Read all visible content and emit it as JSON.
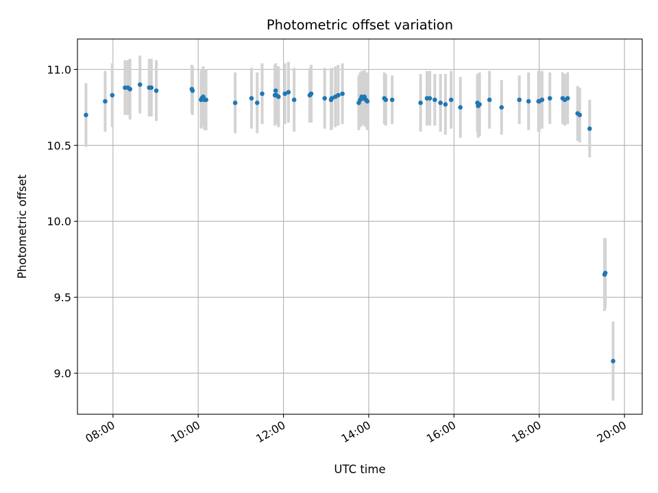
{
  "chart_data": {
    "type": "scatter",
    "title": "Photometric offset variation",
    "xlabel": "UTC time",
    "ylabel": "Photometric offset",
    "xlim": [
      "07:10",
      "20:25"
    ],
    "ylim": [
      8.73,
      11.2
    ],
    "xticks": [
      "08:00",
      "10:00",
      "12:00",
      "14:00",
      "16:00",
      "18:00",
      "20:00"
    ],
    "yticks": [
      "9.0",
      "9.5",
      "10.0",
      "10.5",
      "11.0"
    ],
    "grid": true,
    "colors": {
      "point": "#1f77b4",
      "errorbar": "#d3d3d3",
      "grid": "#b0b0b0",
      "axes": "#000000"
    },
    "series": [
      {
        "x": [
          "07:22",
          "07:49",
          "07:59",
          "08:17",
          "08:21",
          "08:24",
          "08:38",
          "08:51",
          "08:54",
          "09:01",
          "09:51",
          "09:52",
          "10:04",
          "10:05",
          "10:07",
          "10:09",
          "10:11",
          "10:52",
          "11:15",
          "11:23",
          "11:30",
          "11:48",
          "11:49",
          "11:50",
          "11:53",
          "12:02",
          "12:07",
          "12:15",
          "12:37",
          "12:39",
          "12:58",
          "13:07",
          "13:08",
          "13:13",
          "13:17",
          "13:23",
          "13:46",
          "13:48",
          "13:50",
          "13:52",
          "13:54",
          "13:56",
          "13:58",
          "14:22",
          "14:24",
          "14:33",
          "15:13",
          "15:22",
          "15:26",
          "15:33",
          "15:41",
          "15:48",
          "15:56",
          "16:09",
          "16:33",
          "16:34",
          "16:36",
          "16:50",
          "17:07",
          "17:32",
          "17:45",
          "17:59",
          "18:00",
          "18:04",
          "18:15",
          "18:33",
          "18:36",
          "18:40",
          "18:54",
          "18:57",
          "19:11",
          "19:32",
          "19:33",
          "19:44"
        ],
        "y": [
          10.7,
          10.79,
          10.83,
          10.88,
          10.88,
          10.87,
          10.9,
          10.88,
          10.88,
          10.86,
          10.87,
          10.86,
          10.8,
          10.81,
          10.82,
          10.8,
          10.8,
          10.78,
          10.81,
          10.78,
          10.84,
          10.83,
          10.86,
          10.83,
          10.82,
          10.84,
          10.85,
          10.8,
          10.83,
          10.84,
          10.81,
          10.8,
          10.81,
          10.82,
          10.83,
          10.84,
          10.78,
          10.8,
          10.82,
          10.81,
          10.82,
          10.8,
          10.79,
          10.81,
          10.8,
          10.8,
          10.78,
          10.81,
          10.81,
          10.8,
          10.78,
          10.77,
          10.8,
          10.75,
          10.78,
          10.76,
          10.77,
          10.8,
          10.75,
          10.8,
          10.79,
          10.79,
          10.79,
          10.8,
          10.81,
          10.81,
          10.8,
          10.81,
          10.71,
          10.7,
          10.61,
          9.65,
          9.66,
          9.08
        ],
        "yerr": [
          0.21,
          0.2,
          0.21,
          0.18,
          0.18,
          0.2,
          0.19,
          0.19,
          0.19,
          0.2,
          0.16,
          0.16,
          0.19,
          0.19,
          0.2,
          0.2,
          0.2,
          0.2,
          0.2,
          0.2,
          0.2,
          0.2,
          0.18,
          0.19,
          0.2,
          0.2,
          0.2,
          0.21,
          0.18,
          0.19,
          0.2,
          0.2,
          0.2,
          0.2,
          0.2,
          0.2,
          0.18,
          0.18,
          0.17,
          0.18,
          0.18,
          0.18,
          0.19,
          0.17,
          0.17,
          0.16,
          0.19,
          0.18,
          0.18,
          0.17,
          0.19,
          0.2,
          0.19,
          0.2,
          0.19,
          0.21,
          0.21,
          0.19,
          0.18,
          0.16,
          0.19,
          0.2,
          0.2,
          0.19,
          0.17,
          0.17,
          0.17,
          0.17,
          0.18,
          0.18,
          0.19,
          0.24,
          0.23,
          0.26
        ]
      }
    ]
  }
}
